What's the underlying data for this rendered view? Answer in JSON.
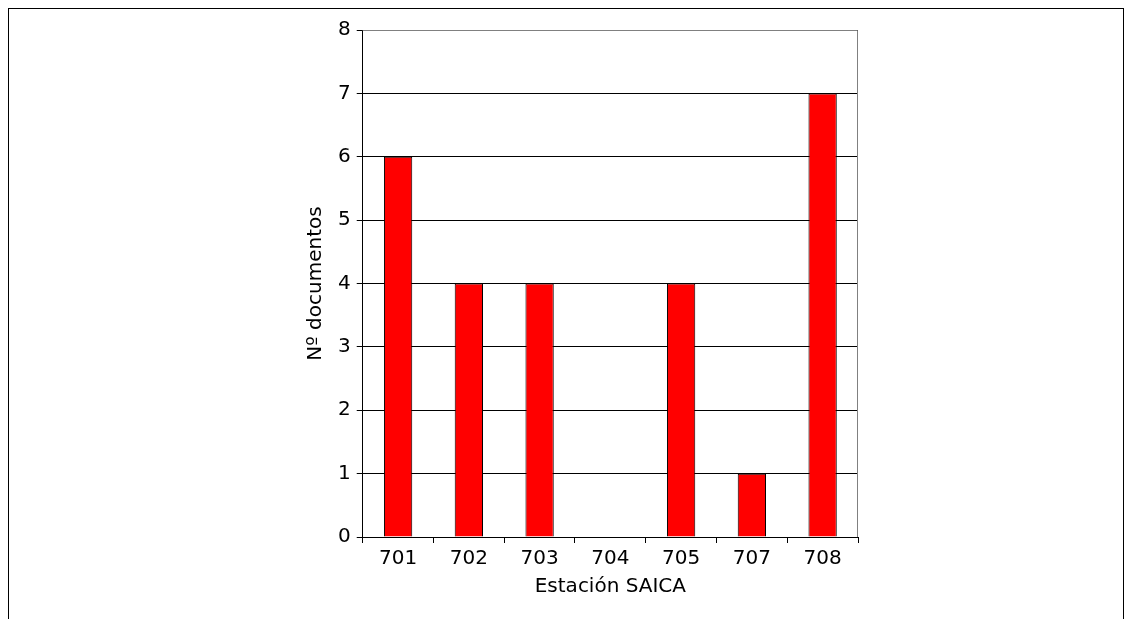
{
  "chart_data": {
    "type": "bar",
    "xlabel": "Estación SAICA",
    "ylabel": "Nº documentos",
    "categories": [
      "701",
      "702",
      "703",
      "704",
      "705",
      "707",
      "708"
    ],
    "values": [
      6,
      4,
      4,
      0,
      4,
      1,
      7
    ],
    "color": "#ff0000",
    "ylim": [
      0,
      8
    ],
    "yticks": [
      0,
      1,
      2,
      3,
      4,
      5,
      6,
      7,
      8
    ],
    "grid": "y",
    "legend": false
  }
}
